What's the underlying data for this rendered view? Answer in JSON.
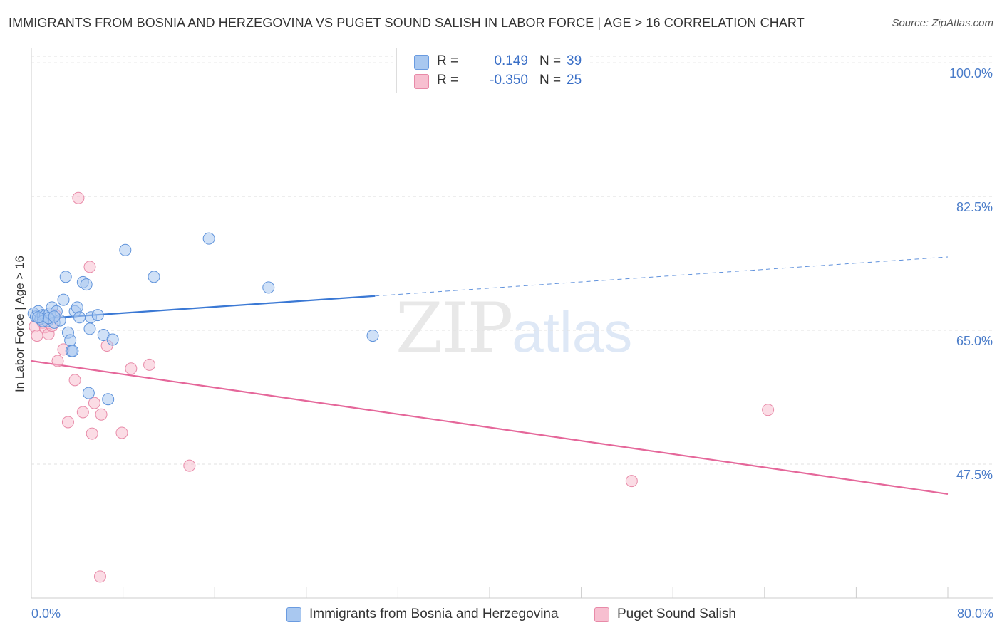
{
  "header": {
    "title": "IMMIGRANTS FROM BOSNIA AND HERZEGOVINA VS PUGET SOUND SALISH IN LABOR FORCE | AGE > 16 CORRELATION CHART",
    "source": "Source: ZipAtlas.com"
  },
  "watermark": {
    "zip": "ZIP",
    "atlas": "atlas"
  },
  "legend": {
    "rows": [
      {
        "r_label": "R =",
        "r_value": "0.149",
        "n_label": "N =",
        "n_value": "39",
        "color": "#a9c8f0",
        "border": "#6a9be0"
      },
      {
        "r_label": "R =",
        "r_value": "-0.350",
        "n_label": "N =",
        "n_value": "25",
        "color": "#f7bfd0",
        "border": "#e88aa8"
      }
    ]
  },
  "colors": {
    "blue": "#3a78d4",
    "pink": "#e5679a",
    "blue_fill": "#a9c8f0",
    "pink_fill": "#f7bfd0"
  },
  "chart_data": {
    "type": "scatter",
    "title": "IMMIGRANTS FROM BOSNIA AND HERZEGOVINA VS PUGET SOUND SALISH IN LABOR FORCE | AGE > 16 CORRELATION CHART",
    "xlabel": "",
    "ylabel": "In Labor Force | Age > 16",
    "xlim": [
      0,
      80
    ],
    "ylim": [
      30,
      101.5
    ],
    "x_tick_labels": [
      "0.0%",
      "80.0%"
    ],
    "y_ticks": [
      {
        "value": 47.5,
        "label": "47.5%"
      },
      {
        "value": 65.0,
        "label": "65.0%"
      },
      {
        "value": 82.5,
        "label": "82.5%"
      },
      {
        "value": 100.0,
        "label": "100.0%"
      }
    ],
    "grid": "horizontal dashed",
    "legend_position": "top-center",
    "series": [
      {
        "name": "Immigrants from Bosnia and Herzegovina",
        "color": "#3a78d4",
        "points": [
          [
            0.2,
            67.2
          ],
          [
            0.4,
            66.8
          ],
          [
            0.6,
            67.5
          ],
          [
            0.8,
            66.5
          ],
          [
            1.0,
            67.0
          ],
          [
            1.2,
            66.9
          ],
          [
            1.4,
            66.2
          ],
          [
            1.6,
            67.2
          ],
          [
            1.8,
            68.0
          ],
          [
            2.0,
            66.0
          ],
          [
            2.2,
            67.5
          ],
          [
            2.5,
            66.3
          ],
          [
            2.8,
            69.0
          ],
          [
            3.0,
            72.0
          ],
          [
            3.2,
            64.7
          ],
          [
            3.4,
            63.7
          ],
          [
            3.5,
            62.3
          ],
          [
            3.6,
            62.3
          ],
          [
            3.8,
            67.5
          ],
          [
            4.0,
            68.0
          ],
          [
            4.2,
            66.7
          ],
          [
            4.5,
            71.3
          ],
          [
            4.8,
            71.0
          ],
          [
            5.0,
            56.8
          ],
          [
            5.2,
            66.7
          ],
          [
            5.1,
            65.2
          ],
          [
            5.8,
            67.0
          ],
          [
            6.3,
            64.4
          ],
          [
            6.7,
            56.0
          ],
          [
            7.1,
            63.8
          ],
          [
            8.2,
            75.5
          ],
          [
            10.7,
            72.0
          ],
          [
            15.5,
            77.0
          ],
          [
            20.7,
            70.6
          ],
          [
            29.8,
            64.3
          ],
          [
            1.0,
            66.2
          ],
          [
            1.5,
            66.6
          ],
          [
            2.0,
            66.8
          ],
          [
            0.6,
            66.7
          ]
        ],
        "trend": {
          "x0": 0.5,
          "y0": 66.5,
          "x1": 30.0,
          "y1": 69.5,
          "dash_to_x": 80.0,
          "dash_to_y": 74.6
        }
      },
      {
        "name": "Puget Sound Salish",
        "color": "#e5679a",
        "points": [
          [
            0.3,
            65.5
          ],
          [
            0.5,
            64.3
          ],
          [
            1.0,
            66.0
          ],
          [
            1.2,
            65.4
          ],
          [
            1.5,
            64.5
          ],
          [
            1.8,
            65.6
          ],
          [
            2.1,
            67.0
          ],
          [
            2.3,
            61.0
          ],
          [
            2.8,
            62.5
          ],
          [
            3.2,
            53.0
          ],
          [
            3.8,
            58.5
          ],
          [
            4.1,
            82.3
          ],
          [
            4.5,
            54.3
          ],
          [
            5.1,
            73.3
          ],
          [
            5.3,
            51.5
          ],
          [
            5.5,
            55.5
          ],
          [
            6.1,
            54.0
          ],
          [
            6.6,
            63.0
          ],
          [
            7.9,
            51.6
          ],
          [
            8.7,
            60.0
          ],
          [
            10.3,
            60.5
          ],
          [
            13.8,
            47.3
          ],
          [
            6.0,
            32.8
          ],
          [
            52.4,
            45.3
          ],
          [
            64.3,
            54.6
          ]
        ],
        "trend": {
          "x0": 0.0,
          "y0": 61.0,
          "x1": 80.0,
          "y1": 43.6
        }
      }
    ]
  }
}
